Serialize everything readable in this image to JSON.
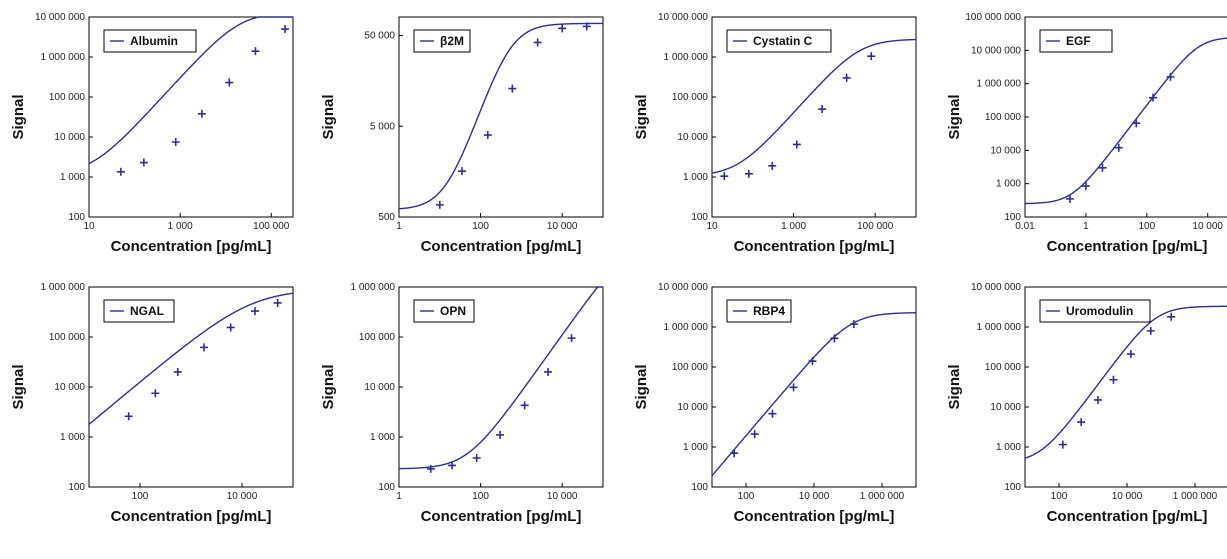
{
  "colors": {
    "curve": "#2e2e8e",
    "axis": "#000000",
    "text": "#111111"
  },
  "chart_data": [
    {
      "type": "line",
      "name": "Albumin",
      "xlabel": "Concentration [pg/mL]",
      "ylabel": "Signal",
      "xscale": "log",
      "yscale": "log",
      "xlim": [
        10,
        300000
      ],
      "ylim": [
        100,
        10000000
      ],
      "xticks": [
        {
          "v": 10,
          "t": "10"
        },
        {
          "v": 1000,
          "t": "1 000"
        },
        {
          "v": 100000,
          "t": "100 000"
        }
      ],
      "yticks": [
        {
          "v": 100,
          "t": "100"
        },
        {
          "v": 1000,
          "t": "1 000"
        },
        {
          "v": 10000,
          "t": "10 000"
        },
        {
          "v": 100000,
          "t": "100 000"
        },
        {
          "v": 1000000,
          "t": "1 000 000"
        },
        {
          "v": 10000000,
          "t": "10 000 000"
        }
      ],
      "points": [
        [
          50,
          1350
        ],
        [
          160,
          2300
        ],
        [
          800,
          7500
        ],
        [
          3000,
          38000
        ],
        [
          12000,
          230000
        ],
        [
          45000,
          1400000
        ],
        [
          200000,
          5000000
        ]
      ],
      "curve": {
        "a": 1200,
        "d": 13000000,
        "c": 20000,
        "b": 1.25
      },
      "legend": "top-left",
      "grid": false
    },
    {
      "type": "line",
      "name": "β2M",
      "xlabel": "Concentration [pg/mL]",
      "ylabel": "Signal",
      "xscale": "log",
      "yscale": "log",
      "xlim": [
        1,
        100000
      ],
      "ylim": [
        500,
        80000
      ],
      "xticks": [
        {
          "v": 1,
          "t": "1"
        },
        {
          "v": 100,
          "t": "100"
        },
        {
          "v": 10000,
          "t": "10 000"
        }
      ],
      "yticks": [
        {
          "v": 500,
          "t": "500"
        },
        {
          "v": 5000,
          "t": "5 000"
        },
        {
          "v": 50000,
          "t": "50 000"
        }
      ],
      "points": [
        [
          10,
          680
        ],
        [
          35,
          1600
        ],
        [
          150,
          4000
        ],
        [
          600,
          13000
        ],
        [
          2500,
          42000
        ],
        [
          10000,
          60000
        ],
        [
          40000,
          63000
        ]
      ],
      "curve": {
        "a": 600,
        "d": 68000,
        "c": 500,
        "b": 1.35
      },
      "legend": "top-left",
      "grid": false
    },
    {
      "type": "line",
      "name": "Cystatin C",
      "xlabel": "Concentration [pg/mL]",
      "ylabel": "Signal",
      "xscale": "log",
      "yscale": "log",
      "xlim": [
        10,
        1000000
      ],
      "ylim": [
        100,
        10000000
      ],
      "xticks": [
        {
          "v": 10,
          "t": "10"
        },
        {
          "v": 1000,
          "t": "1 000"
        },
        {
          "v": 100000,
          "t": "100 000"
        }
      ],
      "yticks": [
        {
          "v": 100,
          "t": "100"
        },
        {
          "v": 1000,
          "t": "1 000"
        },
        {
          "v": 10000,
          "t": "10 000"
        },
        {
          "v": 100000,
          "t": "100 000"
        },
        {
          "v": 1000000,
          "t": "1 000 000"
        },
        {
          "v": 10000000,
          "t": "10 000 000"
        }
      ],
      "points": [
        [
          20,
          1050
        ],
        [
          80,
          1200
        ],
        [
          300,
          1900
        ],
        [
          1200,
          6500
        ],
        [
          5000,
          50000
        ],
        [
          20000,
          300000
        ],
        [
          80000,
          1050000
        ]
      ],
      "curve": {
        "a": 1050,
        "d": 2800000,
        "c": 40000,
        "b": 1.15
      },
      "legend": "top-left",
      "grid": false
    },
    {
      "type": "line",
      "name": "EGF",
      "xlabel": "Concentration [pg/mL]",
      "ylabel": "Signal",
      "xscale": "log",
      "yscale": "log",
      "xlim": [
        0.01,
        50000
      ],
      "ylim": [
        100,
        100000000
      ],
      "xticks": [
        {
          "v": 0.01,
          "t": "0.01"
        },
        {
          "v": 1,
          "t": "1"
        },
        {
          "v": 100,
          "t": "100"
        },
        {
          "v": 10000,
          "t": "10 000"
        }
      ],
      "yticks": [
        {
          "v": 100,
          "t": "100"
        },
        {
          "v": 1000,
          "t": "1 000"
        },
        {
          "v": 10000,
          "t": "10 000"
        },
        {
          "v": 100000,
          "t": "100 000"
        },
        {
          "v": 1000000,
          "t": "1 000 000"
        },
        {
          "v": 10000000,
          "t": "10 000 000"
        },
        {
          "v": 100000000,
          "t": "100 000 000"
        }
      ],
      "points": [
        [
          0.3,
          350
        ],
        [
          1,
          850
        ],
        [
          3.5,
          3000
        ],
        [
          12,
          12000
        ],
        [
          45,
          65000
        ],
        [
          160,
          380000
        ],
        [
          600,
          1600000
        ]
      ],
      "curve": {
        "a": 250,
        "d": 25000000,
        "c": 5000,
        "b": 1.2
      },
      "legend": "top-left",
      "grid": false
    },
    {
      "type": "line",
      "name": "NGAL",
      "xlabel": "Concentration [pg/mL]",
      "ylabel": "Signal",
      "xscale": "log",
      "yscale": "log",
      "xlim": [
        10,
        100000
      ],
      "ylim": [
        100,
        1000000
      ],
      "xticks": [
        {
          "v": 100,
          "t": "100"
        },
        {
          "v": 10000,
          "t": "10 000"
        }
      ],
      "yticks": [
        {
          "v": 100,
          "t": "100"
        },
        {
          "v": 1000,
          "t": "1 000"
        },
        {
          "v": 10000,
          "t": "10 000"
        },
        {
          "v": 100000,
          "t": "100 000"
        },
        {
          "v": 1000000,
          "t": "1 000 000"
        }
      ],
      "points": [
        [
          60,
          2600
        ],
        [
          200,
          7500
        ],
        [
          550,
          20000
        ],
        [
          1800,
          62000
        ],
        [
          6000,
          155000
        ],
        [
          18000,
          330000
        ],
        [
          50000,
          480000
        ]
      ],
      "curve": {
        "a": 0,
        "d": 900000,
        "c": 15000,
        "b": 0.85
      },
      "legend": "top-left",
      "grid": false
    },
    {
      "type": "line",
      "name": "OPN",
      "xlabel": "Concentration [pg/mL]",
      "ylabel": "Signal",
      "xscale": "log",
      "yscale": "log",
      "xlim": [
        1,
        100000
      ],
      "ylim": [
        100,
        1000000
      ],
      "xticks": [
        {
          "v": 1,
          "t": "1"
        },
        {
          "v": 100,
          "t": "100"
        },
        {
          "v": 10000,
          "t": "10 000"
        }
      ],
      "yticks": [
        {
          "v": 100,
          "t": "100"
        },
        {
          "v": 1000,
          "t": "1 000"
        },
        {
          "v": 10000,
          "t": "10 000"
        },
        {
          "v": 100000,
          "t": "100 000"
        },
        {
          "v": 1000000,
          "t": "1 000 000"
        }
      ],
      "points": [
        [
          6,
          230
        ],
        [
          20,
          270
        ],
        [
          80,
          380
        ],
        [
          300,
          1100
        ],
        [
          1200,
          4300
        ],
        [
          4500,
          20000
        ],
        [
          17000,
          95000
        ]
      ],
      "curve": {
        "a": 230,
        "d": 10000000,
        "c": 500000,
        "b": 1.15
      },
      "legend": "top-left",
      "grid": false
    },
    {
      "type": "line",
      "name": "RBP4",
      "xlabel": "Concentration [pg/mL]",
      "ylabel": "Signal",
      "xscale": "log",
      "yscale": "log",
      "xlim": [
        10,
        10000000
      ],
      "ylim": [
        100,
        10000000
      ],
      "xticks": [
        {
          "v": 100,
          "t": "100"
        },
        {
          "v": 10000,
          "t": "10 000"
        },
        {
          "v": 1000000,
          "t": "1 000 000"
        }
      ],
      "yticks": [
        {
          "v": 100,
          "t": "100"
        },
        {
          "v": 1000,
          "t": "1 000"
        },
        {
          "v": 10000,
          "t": "10 000"
        },
        {
          "v": 100000,
          "t": "100 000"
        },
        {
          "v": 1000000,
          "t": "1 000 000"
        },
        {
          "v": 10000000,
          "t": "10 000 000"
        }
      ],
      "points": [
        [
          45,
          700
        ],
        [
          180,
          2100
        ],
        [
          600,
          6800
        ],
        [
          2500,
          31000
        ],
        [
          9000,
          140000
        ],
        [
          40000,
          520000
        ],
        [
          150000,
          1180000
        ]
      ],
      "curve": {
        "a": 0,
        "d": 2300000,
        "c": 120000,
        "b": 1.0
      },
      "legend": "top-left",
      "grid": false
    },
    {
      "type": "line",
      "name": "Uromodulin",
      "xlabel": "Concentration [pg/mL]",
      "ylabel": "Signal",
      "xscale": "log",
      "yscale": "log",
      "xlim": [
        10,
        10000000
      ],
      "ylim": [
        100,
        10000000
      ],
      "xticks": [
        {
          "v": 100,
          "t": "100"
        },
        {
          "v": 10000,
          "t": "10 000"
        },
        {
          "v": 1000000,
          "t": "1 000 000"
        }
      ],
      "yticks": [
        {
          "v": 100,
          "t": "100"
        },
        {
          "v": 1000,
          "t": "1 000"
        },
        {
          "v": 10000,
          "t": "10 000"
        },
        {
          "v": 100000,
          "t": "100 000"
        },
        {
          "v": 1000000,
          "t": "1 000 000"
        },
        {
          "v": 10000000,
          "t": "10 000 000"
        }
      ],
      "points": [
        [
          130,
          1150
        ],
        [
          450,
          4200
        ],
        [
          1400,
          15000
        ],
        [
          4000,
          48000
        ],
        [
          13000,
          210000
        ],
        [
          50000,
          800000
        ],
        [
          200000,
          1800000
        ]
      ],
      "curve": {
        "a": 400,
        "d": 3300000,
        "c": 70000,
        "b": 1.15
      },
      "legend": "top-left",
      "grid": false
    }
  ]
}
